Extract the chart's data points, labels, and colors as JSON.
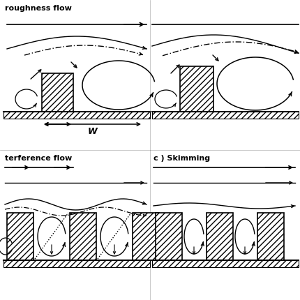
{
  "bg_color": "#ffffff",
  "label_top_left": "roughness flow",
  "label_bottom_left": "terference flow",
  "label_bottom_right": "c ) Skimming",
  "W_label": "W",
  "fig_width": 4.3,
  "fig_height": 4.3,
  "dpi": 100
}
